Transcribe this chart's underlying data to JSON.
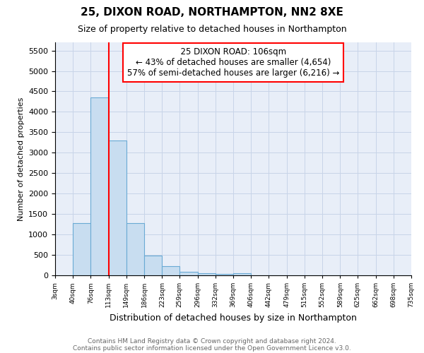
{
  "title": "25, DIXON ROAD, NORTHAMPTON, NN2 8XE",
  "subtitle": "Size of property relative to detached houses in Northampton",
  "xlabel": "Distribution of detached houses by size in Northampton",
  "ylabel": "Number of detached properties",
  "footnote1": "Contains HM Land Registry data © Crown copyright and database right 2024.",
  "footnote2": "Contains public sector information licensed under the Open Government Licence v3.0.",
  "annotation_line1": "25 DIXON ROAD: 106sqm",
  "annotation_line2": "← 43% of detached houses are smaller (4,654)",
  "annotation_line3": "57% of semi-detached houses are larger (6,216) →",
  "bar_color": "#c8ddf0",
  "bar_edge_color": "#6aaad4",
  "red_line_x": 113,
  "bins": [
    3,
    40,
    76,
    113,
    149,
    186,
    223,
    259,
    296,
    332,
    369,
    406,
    442,
    479,
    515,
    552,
    589,
    625,
    662,
    698,
    735
  ],
  "values": [
    0,
    1270,
    4350,
    3300,
    1280,
    480,
    230,
    85,
    55,
    40,
    50,
    0,
    0,
    0,
    0,
    0,
    0,
    0,
    0,
    0
  ],
  "ylim": [
    0,
    5700
  ],
  "yticks": [
    0,
    500,
    1000,
    1500,
    2000,
    2500,
    3000,
    3500,
    4000,
    4500,
    5000,
    5500
  ],
  "background_color": "#ffffff",
  "plot_bg_color": "#e8eef8",
  "grid_color": "#c8d4e8",
  "title_fontsize": 11,
  "subtitle_fontsize": 9,
  "xlabel_fontsize": 9,
  "ylabel_fontsize": 8,
  "xtick_fontsize": 6.5,
  "ytick_fontsize": 8,
  "footnote_fontsize": 6.5,
  "footnote_color": "#666666",
  "annotation_fontsize": 8.5
}
